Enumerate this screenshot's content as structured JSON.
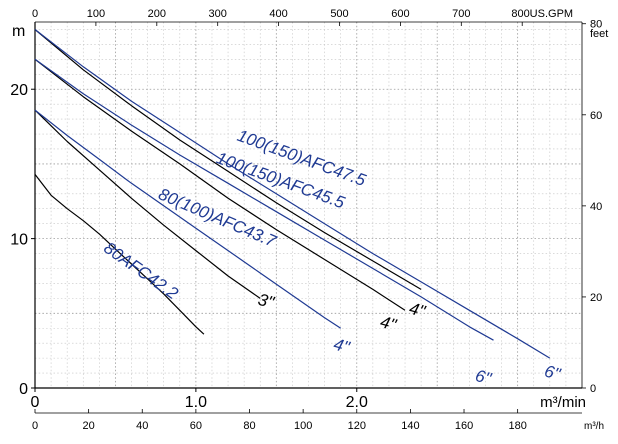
{
  "chart_data": {
    "type": "line",
    "title": "",
    "axes": {
      "x_primary": {
        "unit": "m³/min",
        "range": [
          0,
          3.4
        ],
        "major_ticks": [
          0,
          1.0,
          2.0
        ],
        "tick_labels": [
          "0",
          "1.0",
          "2.0"
        ]
      },
      "x_bottom": {
        "unit": "m³/h",
        "ticks": [
          0,
          20,
          40,
          60,
          80,
          100,
          120,
          140,
          160,
          180
        ],
        "tick_labels": [
          "0",
          "20",
          "40",
          "60",
          "80",
          "100",
          "120",
          "140",
          "160",
          "180"
        ]
      },
      "x_top": {
        "unit": "US.GPM",
        "ticks": [
          0,
          100,
          200,
          300,
          400,
          500,
          600,
          700,
          800
        ],
        "tick_labels": [
          "0",
          "100",
          "200",
          "300",
          "400",
          "500",
          "600",
          "700",
          "800US.GPM"
        ]
      },
      "y_left": {
        "unit": "m",
        "range": [
          0,
          24.5
        ],
        "ticks": [
          0,
          10,
          20
        ],
        "tick_labels": [
          "0",
          "10",
          "20"
        ]
      },
      "y_right": {
        "unit": "feet",
        "ticks": [
          0,
          20,
          40,
          60,
          80
        ],
        "tick_labels": [
          "0",
          "20",
          "40",
          "60",
          "80"
        ]
      }
    },
    "grid": true,
    "series": [
      {
        "name": "80AFC42.2",
        "color": "#000000",
        "x": [
          0,
          0.1,
          0.2,
          0.3,
          0.4,
          0.5,
          0.6,
          0.7,
          0.8,
          0.9,
          1.0,
          1.05
        ],
        "y": [
          14.3,
          12.9,
          12.0,
          11.2,
          10.3,
          9.3,
          8.3,
          7.3,
          6.3,
          5.2,
          4.1,
          3.6
        ]
      },
      {
        "name": "80(100)AFC43.7 3\"",
        "color": "#000000",
        "x": [
          0,
          0.2,
          0.4,
          0.6,
          0.8,
          1.0,
          1.2,
          1.4
        ],
        "y": [
          18.6,
          16.5,
          14.6,
          12.7,
          10.9,
          9.2,
          7.5,
          6.0
        ]
      },
      {
        "name": "80(100)AFC43.7 4\"",
        "color": "#1f3a93",
        "x": [
          0,
          0.2,
          0.4,
          0.6,
          0.8,
          1.0,
          1.2,
          1.4,
          1.6,
          1.8,
          1.9
        ],
        "y": [
          18.6,
          16.9,
          15.3,
          13.7,
          12.2,
          10.7,
          9.2,
          7.7,
          6.2,
          4.7,
          4.0
        ]
      },
      {
        "name": "100(150)AFC45.5 4\"",
        "color": "#000000",
        "x": [
          0,
          0.3,
          0.6,
          0.9,
          1.2,
          1.5,
          1.8,
          2.1,
          2.3
        ],
        "y": [
          22.0,
          19.5,
          17.2,
          15.0,
          12.7,
          10.6,
          8.6,
          6.6,
          5.2
        ]
      },
      {
        "name": "100(150)AFC45.5 6\"",
        "color": "#1f3a93",
        "x": [
          0,
          0.3,
          0.6,
          0.9,
          1.2,
          1.5,
          1.8,
          2.1,
          2.4,
          2.7,
          2.85
        ],
        "y": [
          22.0,
          19.7,
          17.6,
          15.6,
          13.7,
          11.8,
          9.9,
          8.0,
          6.1,
          4.1,
          3.2
        ]
      },
      {
        "name": "100(150)AFC47.5 4\"",
        "color": "#000000",
        "x": [
          0,
          0.3,
          0.6,
          0.9,
          1.2,
          1.5,
          1.8,
          2.1,
          2.4
        ],
        "y": [
          24.0,
          21.3,
          18.9,
          16.6,
          14.5,
          12.4,
          10.4,
          8.5,
          6.6
        ]
      },
      {
        "name": "100(150)AFC47.5 6\"",
        "color": "#1f3a93",
        "x": [
          0,
          0.3,
          0.6,
          0.9,
          1.2,
          1.5,
          1.8,
          2.1,
          2.4,
          2.7,
          3.0,
          3.2
        ],
        "y": [
          24.0,
          21.5,
          19.2,
          17.1,
          15.0,
          13.0,
          11.0,
          9.0,
          7.1,
          5.2,
          3.3,
          2.0
        ]
      }
    ],
    "curve_labels": [
      {
        "text": "100(150)AFC47.5",
        "color": "#1f3a93",
        "at": [
          1.25,
          16.6
        ],
        "angle": 20
      },
      {
        "text": "100(150)AFC45.5",
        "color": "#1f3a93",
        "at": [
          1.12,
          15.1
        ],
        "angle": 20
      },
      {
        "text": "80(100)AFC43.7",
        "color": "#1f3a93",
        "at": [
          0.76,
          12.7
        ],
        "angle": 23
      },
      {
        "text": "80AFC42.2",
        "color": "#1f3a93",
        "at": [
          0.42,
          9.2
        ],
        "angle": 35
      }
    ],
    "size_labels": [
      {
        "text": "3\"",
        "color": "#000000",
        "at": [
          1.38,
          5.6
        ]
      },
      {
        "text": "4\"",
        "color": "#000000",
        "at": [
          2.14,
          4.1
        ]
      },
      {
        "text": "4\"",
        "color": "#000000",
        "at": [
          2.32,
          5.0
        ]
      },
      {
        "text": "4\"",
        "color": "#1f3a93",
        "at": [
          1.85,
          2.6
        ]
      },
      {
        "text": "6\"",
        "color": "#1f3a93",
        "at": [
          2.73,
          0.5
        ]
      },
      {
        "text": "6\"",
        "color": "#1f3a93",
        "at": [
          3.16,
          0.8
        ]
      }
    ]
  }
}
